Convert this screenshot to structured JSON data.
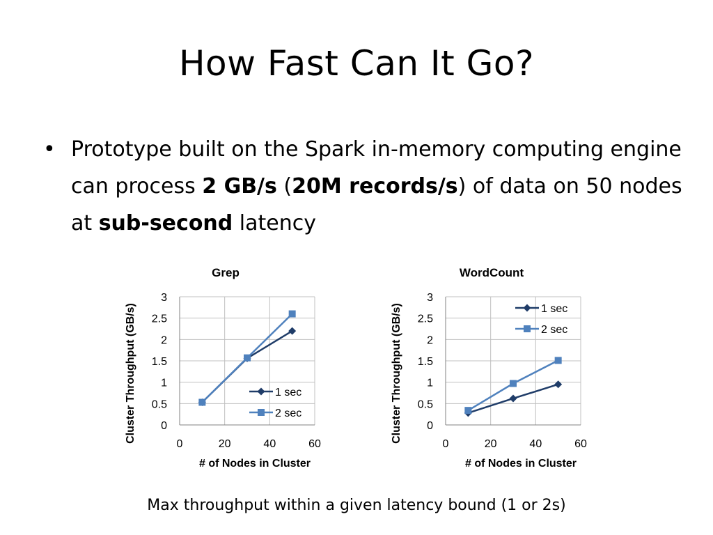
{
  "slide": {
    "title": "How Fast Can It Go?",
    "bullet": {
      "part1": "Prototype built on the Spark in-memory computing engine can process ",
      "bold1": "2 GB/s",
      "part2": " (",
      "bold2": "20M records/s",
      "part3": ") of data on 50 nodes at ",
      "bold3": "sub-second",
      "part4": " latency"
    },
    "caption": "Max throughput within a given latency bound (1 or 2s)"
  },
  "colors": {
    "series_1sec": "#1f3c68",
    "series_2sec": "#4f81bd",
    "grid": "#c0c0c0",
    "axis": "#808080"
  },
  "chart_data": [
    {
      "type": "line",
      "title": "Grep",
      "xlabel": "# of Nodes in Cluster",
      "ylabel": "Cluster Throughput (GB/s)",
      "xlim": [
        0,
        60
      ],
      "ylim": [
        0,
        3
      ],
      "xticks": [
        "0",
        "20",
        "40",
        "60"
      ],
      "yticks": [
        "0",
        "0.5",
        "1",
        "1.5",
        "2",
        "2.5",
        "3"
      ],
      "grid": true,
      "legend": "bottom-right",
      "series": [
        {
          "name": "1 sec",
          "marker": "diamond",
          "x": [
            10,
            30,
            50
          ],
          "y": [
            0.53,
            1.56,
            2.2
          ]
        },
        {
          "name": "2 sec",
          "marker": "square",
          "x": [
            10,
            30,
            50
          ],
          "y": [
            0.53,
            1.57,
            2.6
          ]
        }
      ]
    },
    {
      "type": "line",
      "title": "WordCount",
      "xlabel": "# of Nodes in Cluster",
      "ylabel": "Cluster Throughput (GB/s)",
      "xlim": [
        0,
        60
      ],
      "ylim": [
        0,
        3
      ],
      "xticks": [
        "0",
        "20",
        "40",
        "60"
      ],
      "yticks": [
        "0",
        "0.5",
        "1",
        "1.5",
        "2",
        "2.5",
        "3"
      ],
      "grid": true,
      "legend": "top-right",
      "series": [
        {
          "name": "1 sec",
          "marker": "diamond",
          "x": [
            10,
            30,
            50
          ],
          "y": [
            0.28,
            0.62,
            0.95
          ]
        },
        {
          "name": "2 sec",
          "marker": "square",
          "x": [
            10,
            30,
            50
          ],
          "y": [
            0.34,
            0.97,
            1.51
          ]
        }
      ]
    }
  ]
}
